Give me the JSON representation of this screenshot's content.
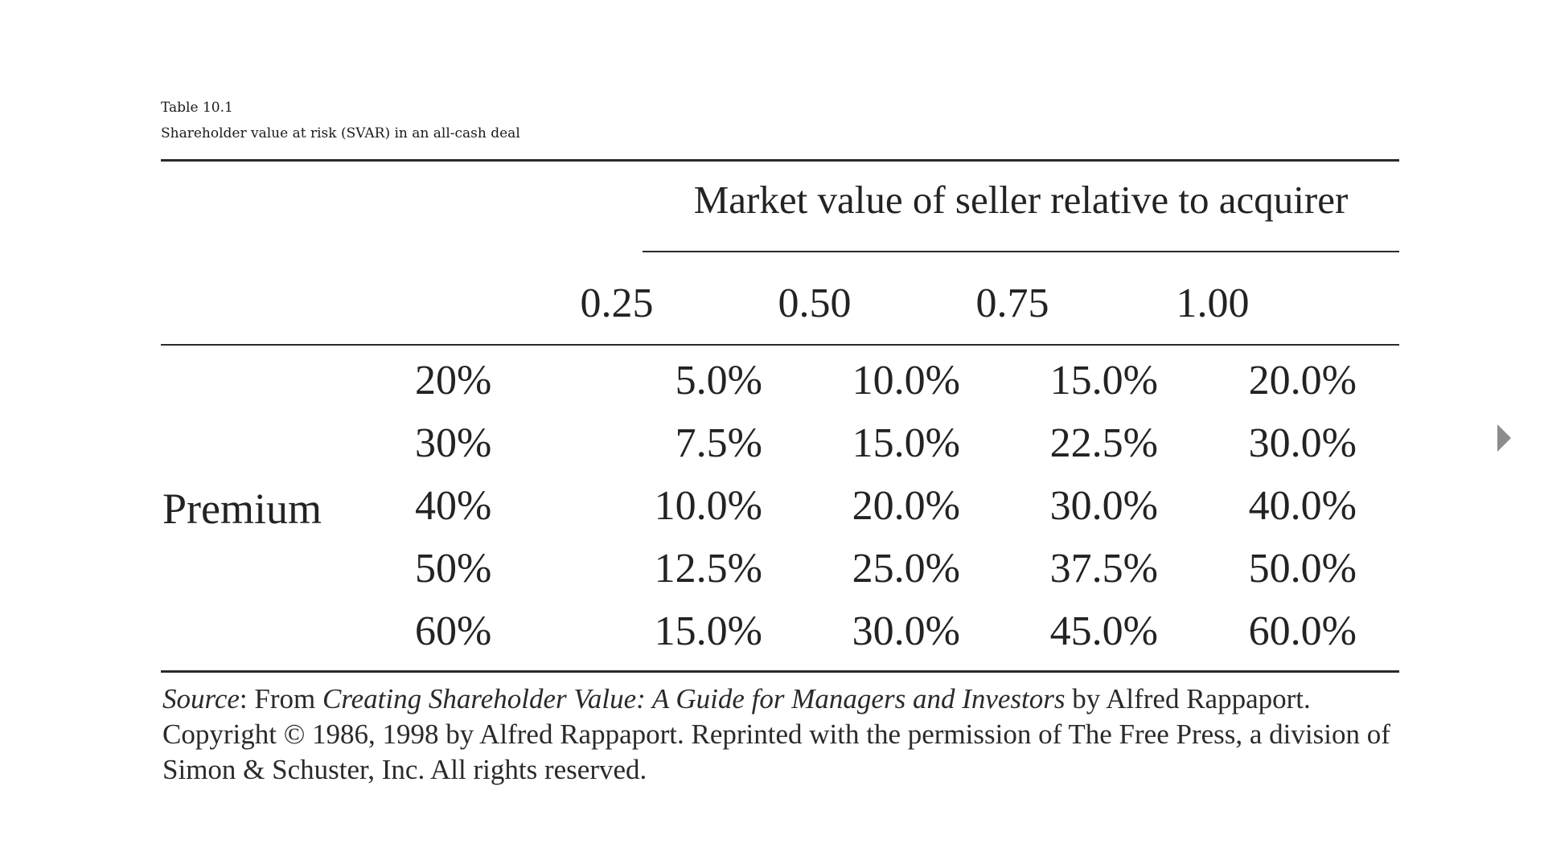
{
  "caption": {
    "number": "Table 10.1",
    "title": "Shareholder value at risk (SVAR) in an all-cash deal"
  },
  "table": {
    "group_header": "Market value of seller relative to acquirer",
    "columns": [
      "0.25",
      "0.50",
      "0.75",
      "1.00"
    ],
    "row_group_label": "Premium",
    "rows": [
      {
        "label": "20%",
        "values": [
          "5.0%",
          "10.0%",
          "15.0%",
          "20.0%"
        ]
      },
      {
        "label": "30%",
        "values": [
          "7.5%",
          "15.0%",
          "22.5%",
          "30.0%"
        ]
      },
      {
        "label": "40%",
        "values": [
          "10.0%",
          "20.0%",
          "30.0%",
          "40.0%"
        ]
      },
      {
        "label": "50%",
        "values": [
          "12.5%",
          "25.0%",
          "37.5%",
          "50.0%"
        ]
      },
      {
        "label": "60%",
        "values": [
          "15.0%",
          "30.0%",
          "45.0%",
          "60.0%"
        ]
      }
    ],
    "source": {
      "label": "Source",
      "from": ": From ",
      "book_title": "Creating Shareholder Value: A Guide for Managers and Investors",
      "rest": " by Alfred Rappaport. Copyright © 1986, 1998 by Alfred Rappaport. Reprinted with the permission of The Free Press, a division of Simon & Schuster, Inc. All rights reserved."
    }
  },
  "navigation": {
    "next_icon": "triangle-right-icon"
  }
}
